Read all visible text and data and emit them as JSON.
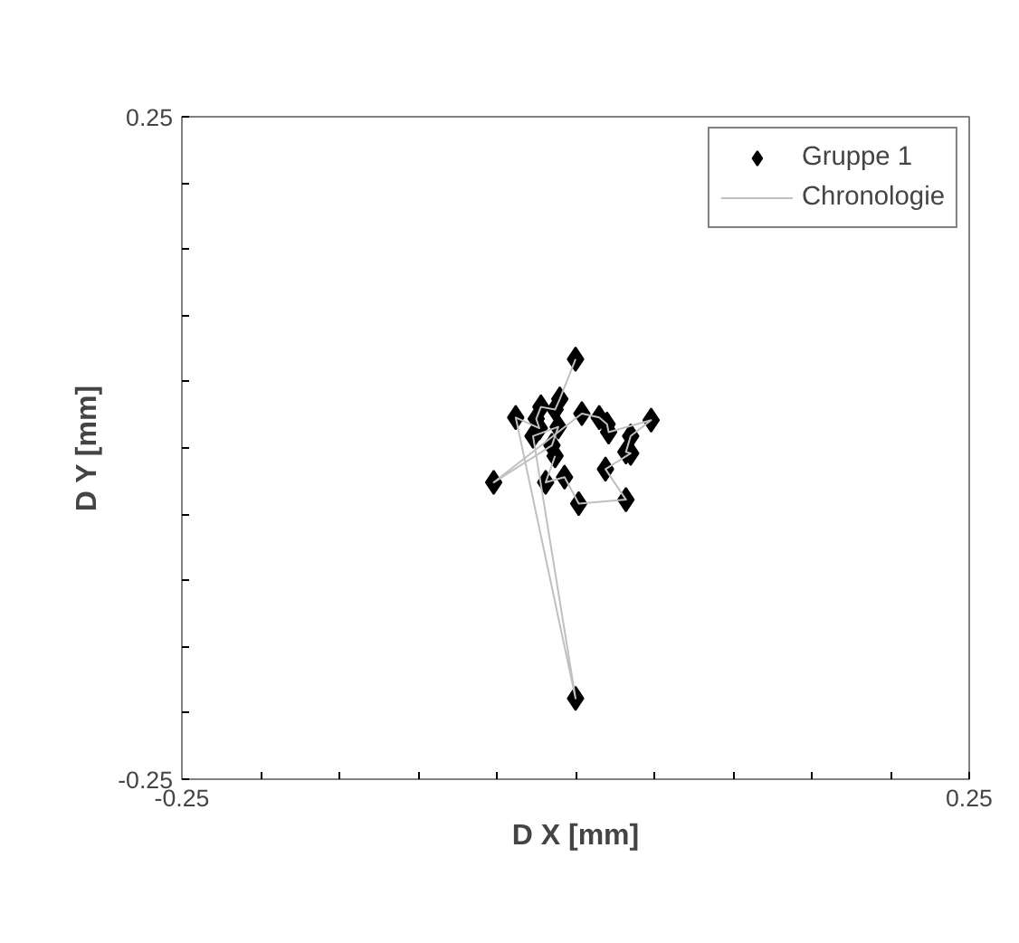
{
  "chart_data": {
    "type": "scatter",
    "xlabel": "D X [mm]",
    "ylabel": "D Y [mm]",
    "xlim": [
      -0.25,
      0.25
    ],
    "ylim": [
      -0.25,
      0.25
    ],
    "xticks": [
      -0.25,
      {
        "value": -0.2,
        "label": null
      },
      {
        "value": -0.15,
        "label": null
      },
      {
        "value": -0.1,
        "label": null
      },
      {
        "value": -0.05,
        "label": null
      },
      {
        "value": 0,
        "label": null
      },
      {
        "value": 0.05,
        "label": null
      },
      {
        "value": 0.1,
        "label": null
      },
      {
        "value": 0.15,
        "label": null
      },
      {
        "value": 0.2,
        "label": null
      },
      0.25
    ],
    "yticks": [
      -0.25,
      {
        "value": -0.2,
        "label": null
      },
      {
        "value": -0.15,
        "label": null
      },
      {
        "value": -0.1,
        "label": null
      },
      {
        "value": -0.05,
        "label": null
      },
      {
        "value": 0,
        "label": null
      },
      {
        "value": 0.05,
        "label": null
      },
      {
        "value": 0.1,
        "label": null
      },
      {
        "value": 0.15,
        "label": null
      },
      {
        "value": 0.2,
        "label": null
      },
      0.25
    ],
    "grid": false,
    "legend": "top right",
    "series": [
      {
        "name": "Gruppe 1",
        "marker": "diamond",
        "color": "#000000",
        "x": [
          0.0,
          -0.01,
          -0.013,
          -0.022,
          -0.025,
          -0.023,
          -0.038,
          0.0,
          -0.027,
          -0.011,
          -0.015,
          -0.052,
          0.004,
          0.015,
          0.02,
          0.021,
          0.048,
          0.035,
          0.032,
          0.035,
          0.019,
          0.032,
          0.002,
          -0.007,
          -0.019,
          -0.013
        ],
        "values": [
          0.067,
          0.037,
          0.029,
          0.031,
          0.022,
          0.015,
          0.023,
          -0.189,
          0.009,
          0.016,
          0.002,
          -0.026,
          0.026,
          0.023,
          0.018,
          0.012,
          0.021,
          0.009,
          -0.003,
          -0.004,
          -0.016,
          -0.039,
          -0.042,
          -0.022,
          -0.026,
          -0.006
        ]
      },
      {
        "name": "Chronologie",
        "type": "line",
        "marker": "none",
        "line_style": "solid",
        "color": "#c0c0c0",
        "x": [
          0.0,
          -0.01,
          -0.013,
          -0.022,
          -0.025,
          -0.023,
          -0.038,
          0.0,
          -0.027,
          -0.011,
          -0.015,
          -0.052,
          0.004,
          0.015,
          0.02,
          0.021,
          0.048,
          0.035,
          0.032,
          0.035,
          0.019,
          0.032,
          0.002,
          -0.007,
          -0.019,
          -0.013
        ],
        "values": [
          0.067,
          0.037,
          0.029,
          0.031,
          0.022,
          0.015,
          0.023,
          -0.189,
          0.009,
          0.016,
          0.002,
          -0.026,
          0.026,
          0.023,
          0.018,
          0.012,
          0.021,
          0.009,
          -0.003,
          -0.004,
          -0.016,
          -0.039,
          -0.042,
          -0.022,
          -0.026,
          -0.006
        ]
      }
    ]
  }
}
